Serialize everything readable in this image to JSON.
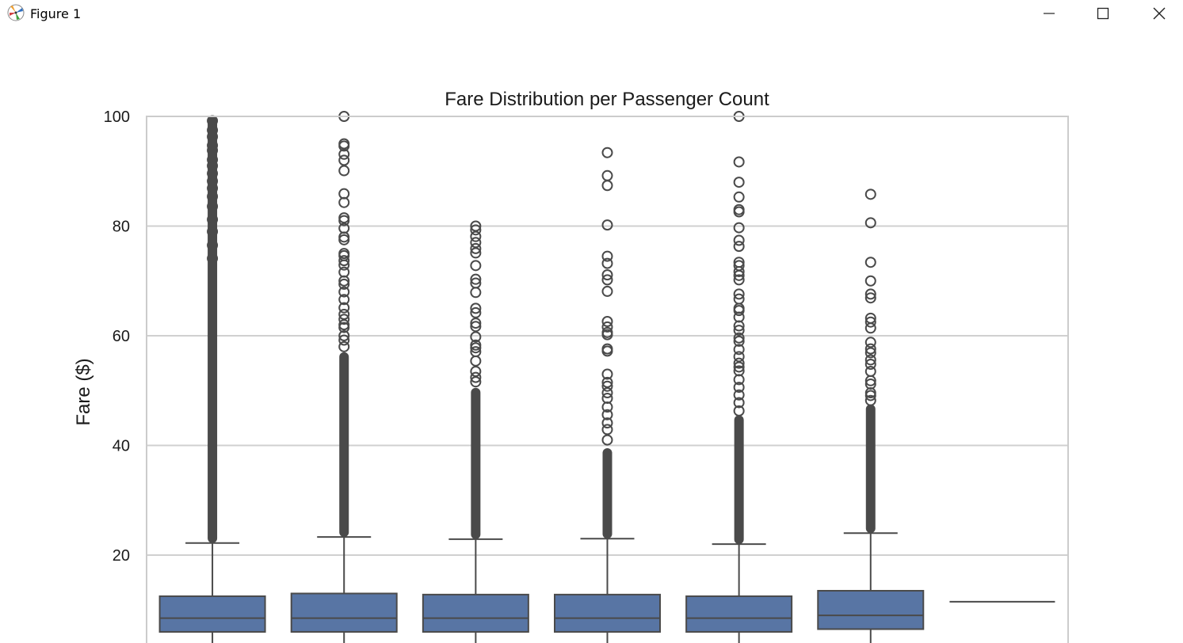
{
  "window": {
    "title": "Figure 1",
    "app_icon": "matplotlib-icon",
    "controls": {
      "minimize_icon": "minimize-icon",
      "maximize_icon": "maximize-icon",
      "close_icon": "close-icon"
    }
  },
  "chart_data": {
    "type": "box",
    "title": "Fare Distribution per Passenger Count",
    "xlabel": "",
    "ylabel": "Fare ($)",
    "ylim": [
      0,
      100
    ],
    "y_ticks": [
      20,
      40,
      60,
      80,
      100
    ],
    "grid": true,
    "box_color": "#5875a4",
    "outline_color": "#4a4a4a",
    "grid_color": "#d0d0d0",
    "boxes": [
      {
        "q1": 6.0,
        "median": 8.5,
        "q3": 12.5,
        "whisker_high": 22.2,
        "outliers_dense_from": 22.2,
        "outliers_dense_to": 100,
        "outliers": [
          99.2,
          97.5,
          96.3,
          94.7,
          93.8,
          92.1,
          91.0,
          89.6,
          88.2,
          86.9,
          85.4,
          83.6,
          81.2,
          79.0,
          76.5,
          74.1
        ]
      },
      {
        "q1": 6.0,
        "median": 8.5,
        "q3": 13.0,
        "whisker_high": 23.3,
        "outliers_dense_from": 23.3,
        "outliers_dense_to": 57.0,
        "outliers": [
          100.0,
          95.0,
          94.6,
          93.1,
          92.0,
          90.1,
          85.9,
          84.3,
          81.5,
          81.0,
          79.6,
          78.0,
          77.5,
          75.0,
          74.6,
          73.7,
          72.9,
          71.6,
          70.0,
          69.4,
          68.0,
          66.6,
          65.1,
          63.9,
          63.0,
          62.0,
          61.5,
          60.0,
          59.2,
          58.0
        ]
      },
      {
        "q1": 6.0,
        "median": 8.5,
        "q3": 12.8,
        "whisker_high": 22.9,
        "outliers_dense_from": 22.9,
        "outliers_dense_to": 50.5,
        "outliers": [
          80.0,
          79.3,
          78.1,
          77.0,
          75.9,
          75.1,
          72.8,
          70.3,
          69.6,
          67.9,
          65.0,
          64.2,
          62.3,
          61.7,
          59.8,
          58.3,
          57.8,
          57.1,
          55.4,
          53.5,
          52.4,
          51.6
        ]
      },
      {
        "q1": 6.0,
        "median": 8.5,
        "q3": 12.8,
        "whisker_high": 23.0,
        "outliers_dense_from": 23.0,
        "outliers_dense_to": 39.5,
        "outliers": [
          93.4,
          89.2,
          87.4,
          80.2,
          74.5,
          73.2,
          71.1,
          70.2,
          68.1,
          62.6,
          61.6,
          60.6,
          60.2,
          57.6,
          57.2,
          53.0,
          51.5,
          50.8,
          49.6,
          48.6,
          47.0,
          45.6,
          44.1,
          42.9,
          41.0
        ]
      },
      {
        "q1": 6.0,
        "median": 8.5,
        "q3": 12.5,
        "whisker_high": 22.0,
        "outliers_dense_from": 22.0,
        "outliers_dense_to": 45.5,
        "outliers": [
          100.0,
          91.7,
          88.0,
          85.3,
          83.0,
          82.6,
          79.7,
          77.4,
          76.3,
          73.4,
          72.8,
          71.7,
          71.0,
          70.2,
          67.6,
          66.7,
          65.0,
          64.6,
          63.4,
          61.8,
          61.0,
          59.6,
          59.0,
          57.5,
          56.2,
          55.0,
          54.3,
          53.6,
          52.0,
          50.6,
          49.2,
          47.8,
          46.3
        ]
      },
      {
        "q1": 6.5,
        "median": 9.0,
        "q3": 13.5,
        "whisker_high": 24.0,
        "outliers_dense_from": 24.0,
        "outliers_dense_to": 47.5,
        "outliers": [
          85.8,
          80.6,
          73.4,
          70.0,
          67.6,
          66.9,
          63.2,
          62.5,
          61.4,
          58.8,
          57.6,
          56.9,
          55.6,
          54.8,
          53.5,
          51.8,
          51.2,
          49.6,
          49.1,
          48.2
        ]
      },
      {
        "q1": 11.5,
        "median": 11.5,
        "q3": 11.5,
        "whisker_high": 11.5,
        "outliers_dense_from": null,
        "outliers_dense_to": null,
        "outliers": []
      }
    ]
  }
}
